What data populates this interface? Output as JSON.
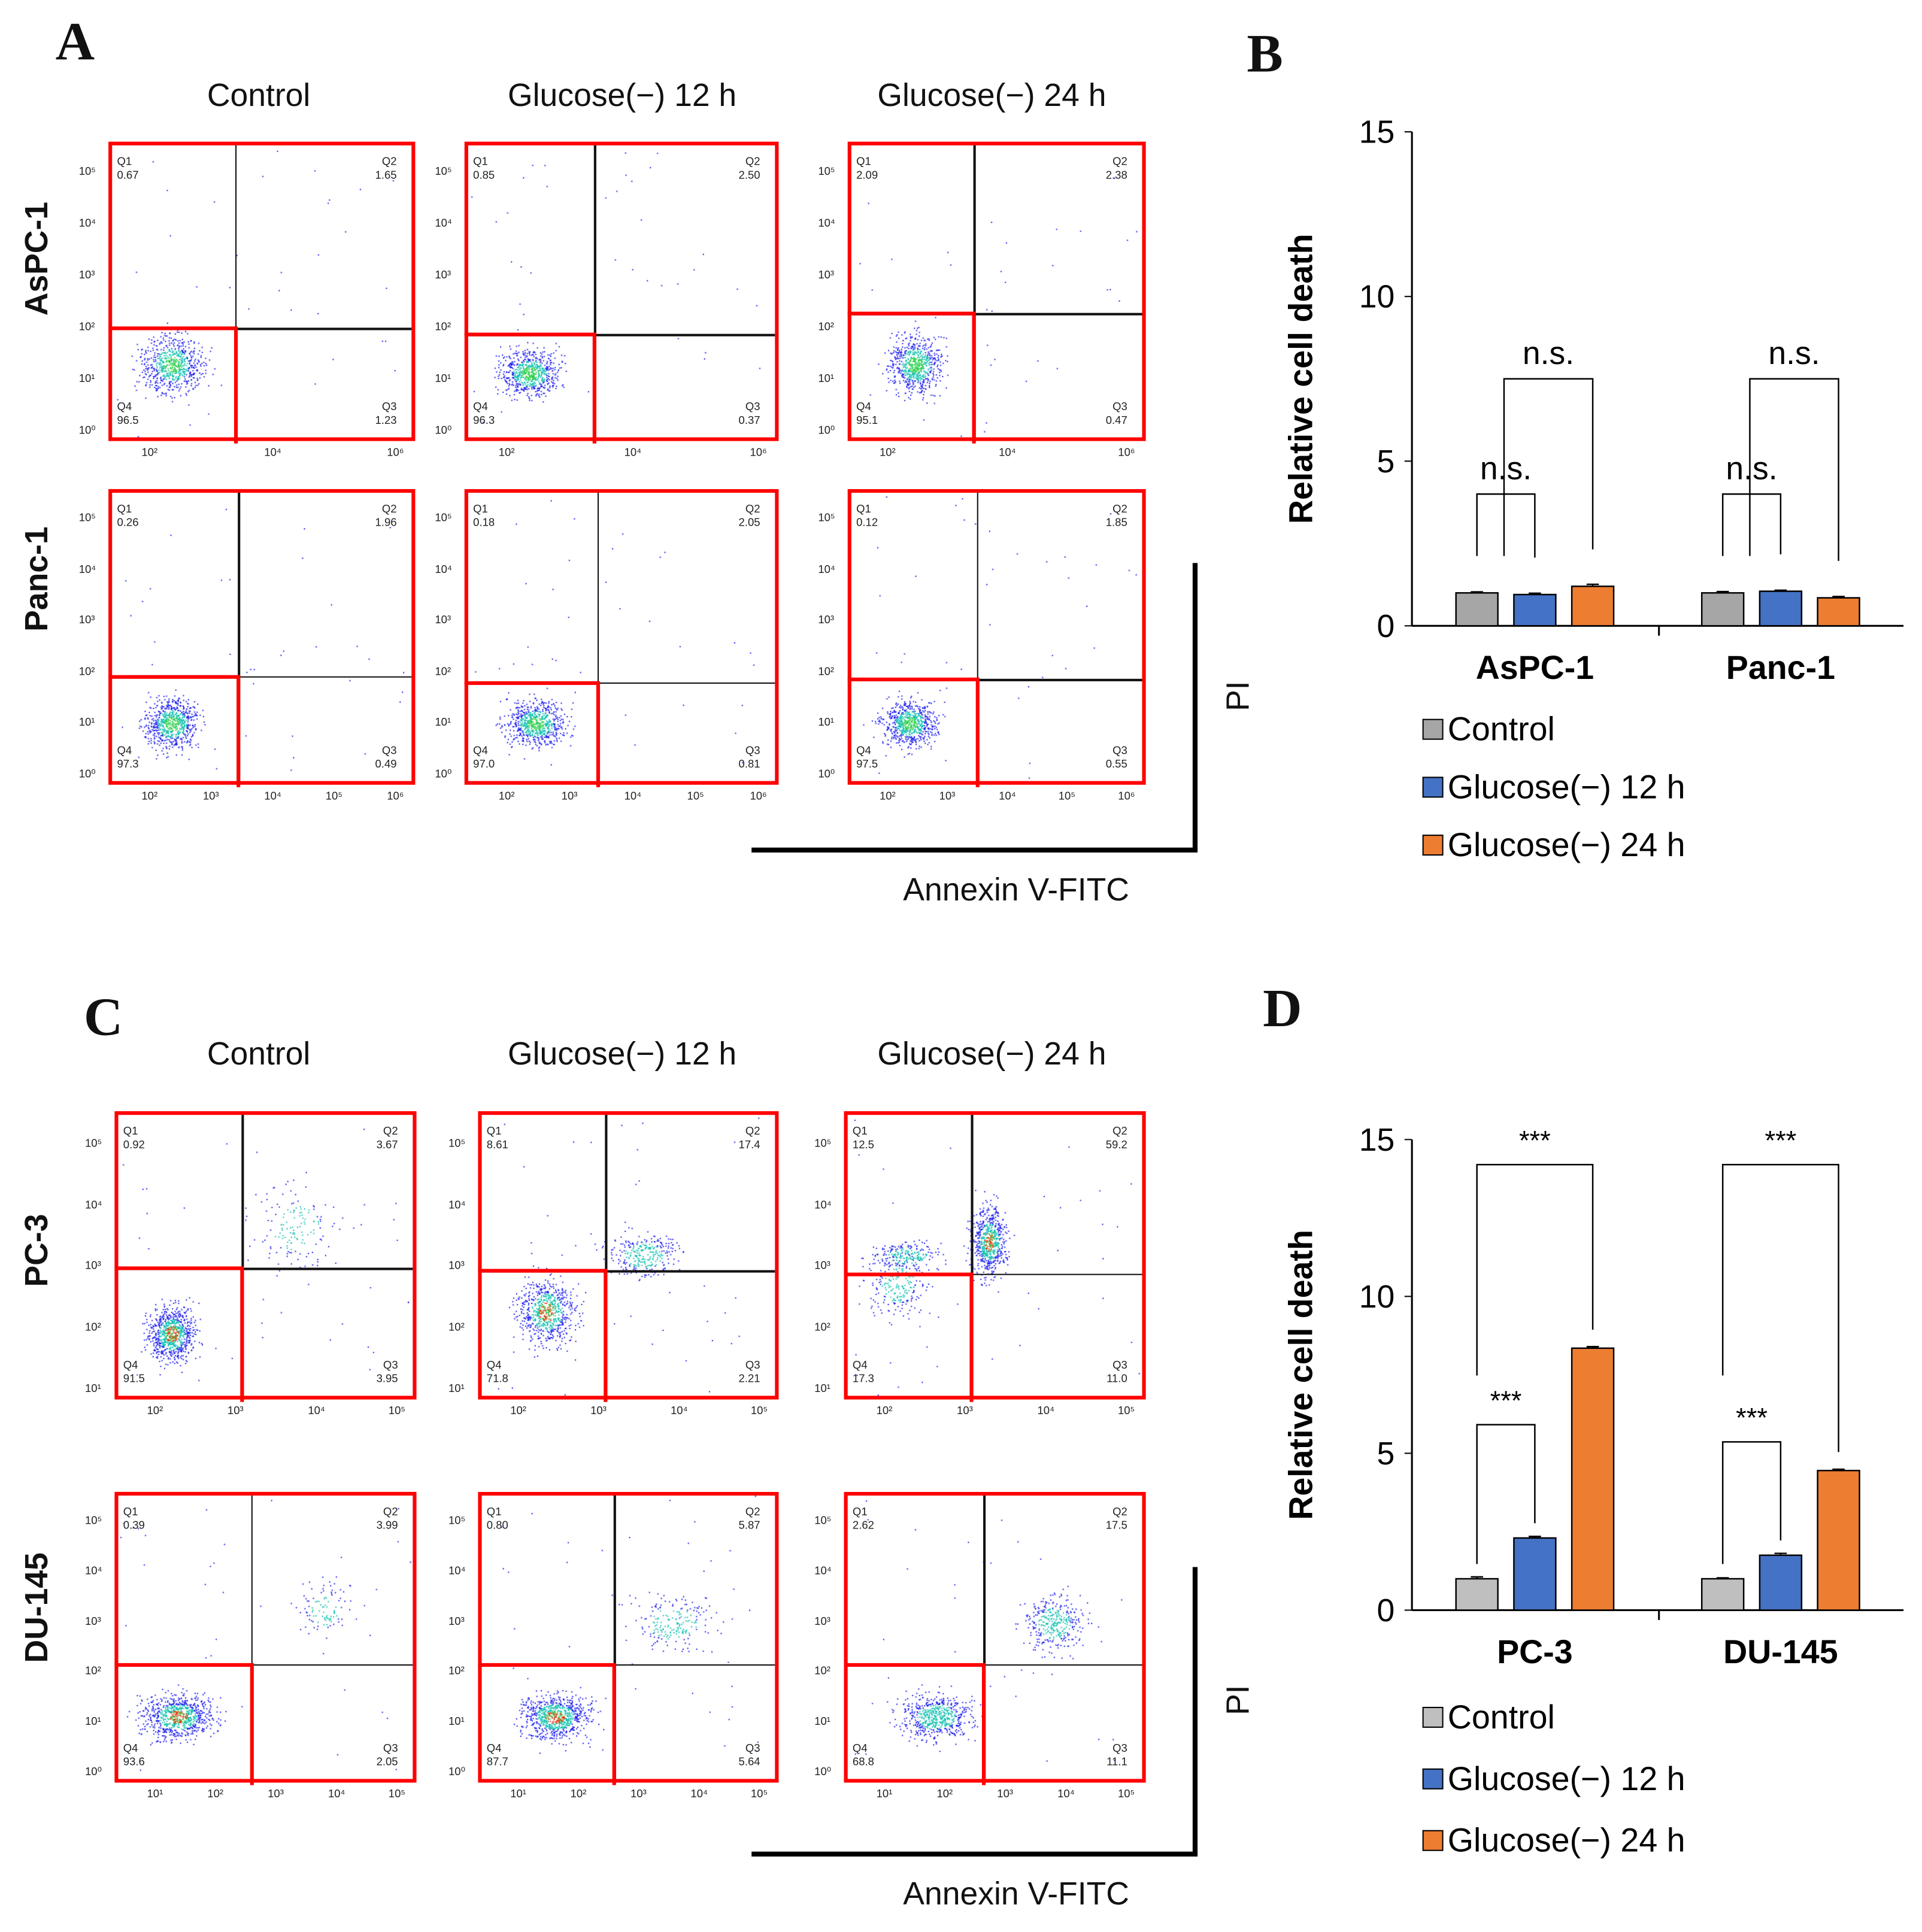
{
  "panel_A": {
    "letter": "A",
    "columns": [
      "Control",
      "Glucose(−) 12 h",
      "Glucose(−) 24 h"
    ],
    "x_ticks": [
      "10²",
      "10⁴",
      "10⁶"
    ],
    "x_ticks_row2": [
      "10²",
      "10³",
      "10⁴",
      "10⁵",
      "10⁶"
    ],
    "y_ticks": [
      "10⁰",
      "10¹",
      "10²",
      "10³",
      "10⁴",
      "10⁵"
    ],
    "xlabel": "Annexin V-FITC",
    "ylabel": "PI",
    "rows": [
      {
        "name": "AsPC-1",
        "plots": [
          {
            "q1": "0.67",
            "q2": "1.65",
            "q3": "1.23",
            "q4": "96.5"
          },
          {
            "q1": "0.85",
            "q2": "2.50",
            "q3": "0.37",
            "q4": "96.3"
          },
          {
            "q1": "2.09",
            "q2": "2.38",
            "q3": "0.47",
            "q4": "95.1"
          }
        ]
      },
      {
        "name": "Panc-1",
        "plots": [
          {
            "q1": "0.26",
            "q2": "1.96",
            "q3": "0.49",
            "q4": "97.3"
          },
          {
            "q1": "0.18",
            "q2": "2.05",
            "q3": "0.81",
            "q4": "97.0"
          },
          {
            "q1": "0.12",
            "q2": "1.85",
            "q3": "0.55",
            "q4": "97.5"
          }
        ]
      }
    ]
  },
  "panel_C": {
    "letter": "C",
    "columns": [
      "Control",
      "Glucose(−) 12 h",
      "Glucose(−) 24 h"
    ],
    "x_ticks": [
      "10²",
      "10³",
      "10⁴",
      "10⁵"
    ],
    "x_ticks_row2": [
      "10¹",
      "10²",
      "10³",
      "10⁴",
      "10⁵"
    ],
    "y_ticks": [
      "10¹",
      "10²",
      "10³",
      "10⁴",
      "10⁵"
    ],
    "y_ticks_row2": [
      "10⁰",
      "10¹",
      "10²",
      "10³",
      "10⁴",
      "10⁵"
    ],
    "xlabel": "Annexin V-FITC",
    "ylabel": "PI",
    "rows": [
      {
        "name": "PC-3",
        "plots": [
          {
            "q1": "0.92",
            "q2": "3.67",
            "q3": "3.95",
            "q4": "91.5"
          },
          {
            "q1": "8.61",
            "q2": "17.4",
            "q3": "2.21",
            "q4": "71.8"
          },
          {
            "q1": "12.5",
            "q2": "59.2",
            "q3": "11.0",
            "q4": "17.3"
          }
        ]
      },
      {
        "name": "DU-145",
        "plots": [
          {
            "q1": "0.39",
            "q2": "3.99",
            "q3": "2.05",
            "q4": "93.6"
          },
          {
            "q1": "0.80",
            "q2": "5.87",
            "q3": "5.64",
            "q4": "87.7"
          },
          {
            "q1": "2.62",
            "q2": "17.5",
            "q3": "11.1",
            "q4": "68.8"
          }
        ]
      }
    ]
  },
  "quadrant_names": [
    "Q1",
    "Q2",
    "Q3",
    "Q4"
  ],
  "chart_data": [
    {
      "panel": "B",
      "type": "bar",
      "ylabel": "Relative cell death",
      "ylim": [
        0,
        15
      ],
      "y_ticks": [
        0,
        5,
        10,
        15
      ],
      "categories": [
        "AsPC-1",
        "Panc-1"
      ],
      "series": [
        {
          "name": "Control",
          "color": "#a6a6a6",
          "values": [
            1.0,
            1.0
          ]
        },
        {
          "name": "Glucose(−) 12 h",
          "color": "#4472c4",
          "values": [
            0.95,
            1.05
          ]
        },
        {
          "name": "Glucose(−) 24 h",
          "color": "#ed7d31",
          "values": [
            1.2,
            0.85
          ]
        }
      ],
      "errors": [
        [
          0.03,
          0.04
        ],
        [
          0.04,
          0.03
        ],
        [
          0.06,
          0.04
        ]
      ],
      "significance": [
        {
          "category": "AsPC-1",
          "compare": "Control vs 12 h",
          "label": "n.s."
        },
        {
          "category": "AsPC-1",
          "compare": "Control vs 24 h",
          "label": "n.s."
        },
        {
          "category": "Panc-1",
          "compare": "Control vs 12 h",
          "label": "n.s."
        },
        {
          "category": "Panc-1",
          "compare": "Control vs 24 h",
          "label": "n.s."
        }
      ],
      "legend": "bottom"
    },
    {
      "panel": "D",
      "type": "bar",
      "ylabel": "Relative cell death",
      "ylim": [
        0,
        15
      ],
      "y_ticks": [
        0,
        5,
        10,
        15
      ],
      "categories": [
        "PC-3",
        "DU-145"
      ],
      "series": [
        {
          "name": "Control",
          "color": "#bfbfbf",
          "values": [
            1.0,
            1.0
          ]
        },
        {
          "name": "Glucose(−) 12 h",
          "color": "#4472c4",
          "values": [
            2.3,
            1.75
          ]
        },
        {
          "name": "Glucose(−) 24 h",
          "color": "#ed7d31",
          "values": [
            8.35,
            4.45
          ]
        }
      ],
      "errors": [
        [
          0.06,
          0.03
        ],
        [
          0.05,
          0.06
        ],
        [
          0.05,
          0.04
        ]
      ],
      "significance": [
        {
          "category": "PC-3",
          "compare": "Control vs 12 h",
          "label": "***"
        },
        {
          "category": "PC-3",
          "compare": "Control vs 24 h",
          "label": "***"
        },
        {
          "category": "DU-145",
          "compare": "Control vs 12 h",
          "label": "***"
        },
        {
          "category": "DU-145",
          "compare": "Control vs 24 h",
          "label": "***"
        }
      ],
      "legend": "bottom"
    }
  ]
}
